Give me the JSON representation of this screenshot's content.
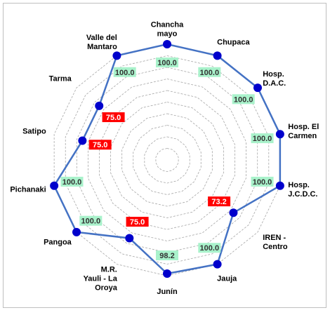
{
  "chart_data": {
    "type": "radar",
    "categories": [
      "Chancha\nmayo",
      "Chupaca",
      "Hosp.\nD.A.C.",
      "Hosp. El\nCarmen",
      "Hosp.\nJ.C.D.C.",
      "IREN -\nCentro",
      "Jauja",
      "Junín",
      "M.R.\nYauli - La\nOroya",
      "Pangoa",
      "Pichanaki",
      "Satipo",
      "Tarma",
      "Valle del\nMantaro"
    ],
    "series": [
      {
        "color": "#4472c4",
        "marker_color": "#0000cc",
        "values": [
          100,
          100,
          100,
          100,
          100,
          73.2,
          100,
          98.2,
          75,
          100,
          100,
          75,
          75,
          100
        ],
        "value_labels": [
          "100.0",
          "100.0",
          "100.0",
          "100.0",
          "100.0",
          "73.2",
          "100.0",
          "98.2",
          "75.0",
          "100.0",
          "100.0",
          "75.0",
          "75.0",
          "100.0"
        ],
        "value_label_colors": [
          "#a9f2cb",
          "#a9f2cb",
          "#a9f2cb",
          "#a9f2cb",
          "#a9f2cb",
          "#ff0000",
          "#a9f2cb",
          "#a9f2cb",
          "#ff0000",
          "#a9f2cb",
          "#a9f2cb",
          "#ff0000",
          "#ff0000",
          "#a9f2cb"
        ]
      }
    ],
    "ylim": [
      0,
      100
    ],
    "yticks": [
      10,
      20,
      30,
      40,
      50,
      60,
      70,
      80,
      90,
      100
    ],
    "grid": true
  }
}
